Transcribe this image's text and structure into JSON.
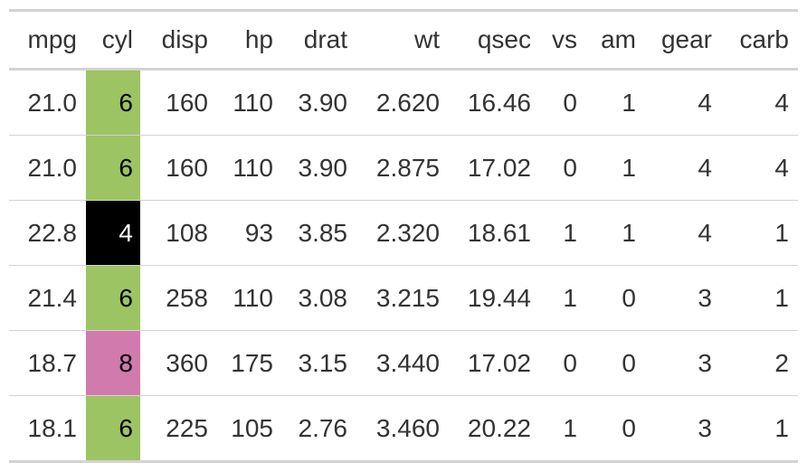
{
  "table": {
    "columns": [
      "mpg",
      "cyl",
      "disp",
      "hp",
      "drat",
      "wt",
      "qsec",
      "vs",
      "am",
      "gear",
      "carb"
    ],
    "rows": [
      [
        "21.0",
        "6",
        "160",
        "110",
        "3.90",
        "2.620",
        "16.46",
        "0",
        "1",
        "4",
        "4"
      ],
      [
        "21.0",
        "6",
        "160",
        "110",
        "3.90",
        "2.875",
        "17.02",
        "0",
        "1",
        "4",
        "4"
      ],
      [
        "22.8",
        "4",
        "108",
        "93",
        "3.85",
        "2.320",
        "18.61",
        "1",
        "1",
        "4",
        "1"
      ],
      [
        "21.4",
        "6",
        "258",
        "110",
        "3.08",
        "3.215",
        "19.44",
        "1",
        "0",
        "3",
        "1"
      ],
      [
        "18.7",
        "8",
        "360",
        "175",
        "3.15",
        "3.440",
        "17.02",
        "0",
        "0",
        "3",
        "2"
      ],
      [
        "18.1",
        "6",
        "225",
        "105",
        "2.76",
        "3.460",
        "20.22",
        "1",
        "0",
        "3",
        "1"
      ]
    ],
    "cyl_fill": [
      "#9cc462",
      "#9cc462",
      "#000000",
      "#9cc462",
      "#d07aae",
      "#9cc462"
    ]
  }
}
